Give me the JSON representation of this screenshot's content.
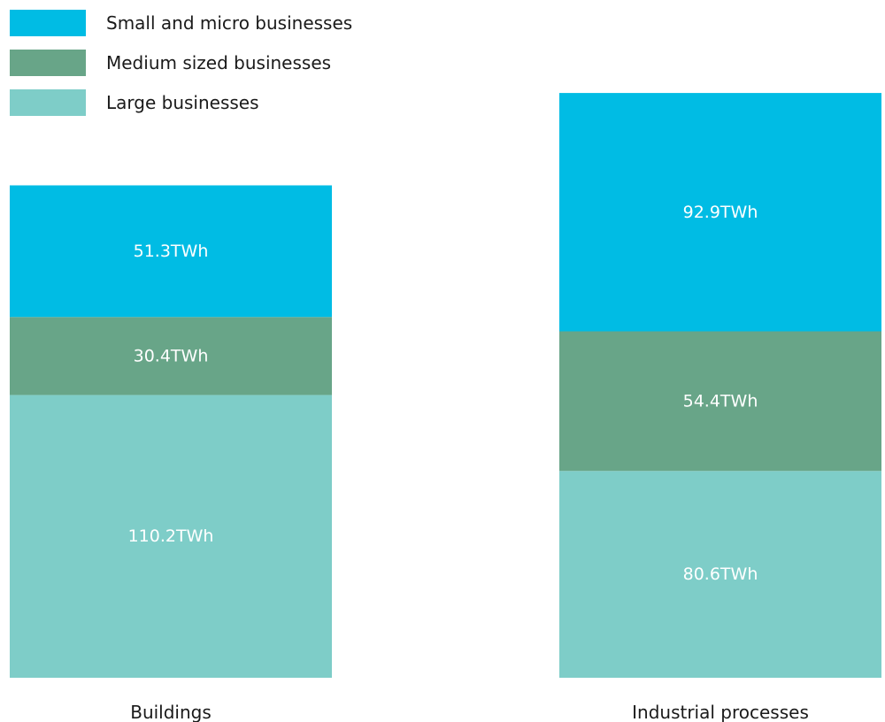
{
  "chart_data": {
    "type": "bar",
    "stacked": true,
    "orientation": "vertical",
    "categories": [
      "Buildings",
      "Industrial processes"
    ],
    "unit": "TWh",
    "series": [
      {
        "name": "Small and micro businesses",
        "values": [
          51.3,
          92.9
        ],
        "labels": [
          "51.3TWh",
          "92.9TWh"
        ],
        "color": "#00bce4"
      },
      {
        "name": "Medium sized businesses",
        "values": [
          30.4,
          54.4
        ],
        "labels": [
          "30.4TWh",
          "54.4TWh"
        ],
        "color": "#68a588"
      },
      {
        "name": "Large businesses",
        "values": [
          110.2,
          80.6
        ],
        "labels": [
          "110.2TWh",
          "80.6TWh"
        ],
        "color": "#7ecdc8"
      }
    ],
    "legend_position": "top-left",
    "axes_visible": false,
    "grid": false,
    "title": "",
    "xlabel": "",
    "ylabel": ""
  }
}
